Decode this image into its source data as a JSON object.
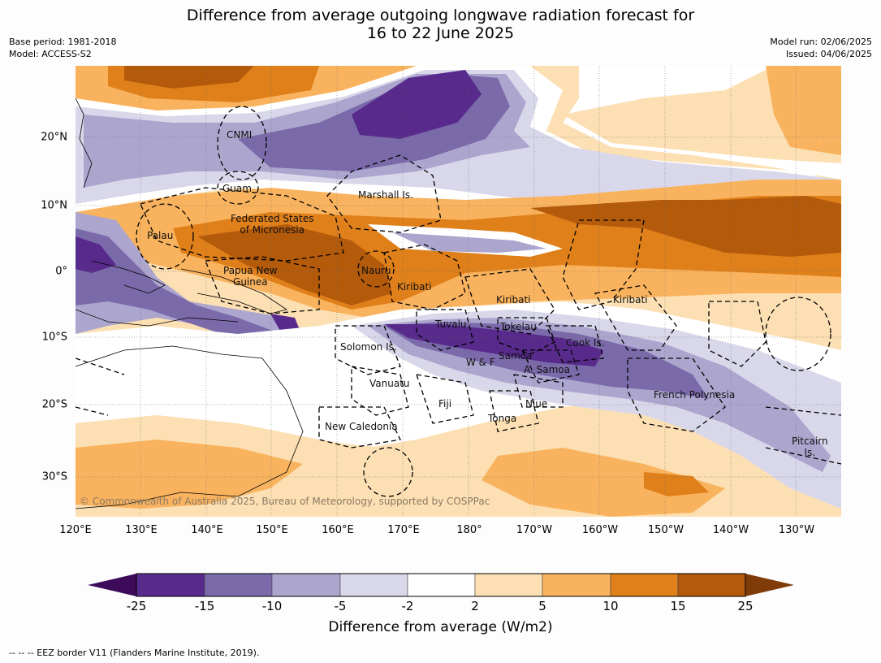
{
  "title_line1": "Difference from average outgoing longwave radiation forecast for",
  "title_line2": "16 to 22 June 2025",
  "base_period": "Base period: 1981-2018",
  "model": "Model: ACCESS-S2",
  "model_run": "Model run: 02/06/2025",
  "issued": "Issued: 04/06/2025",
  "lon_labels": [
    "120°E",
    "130°E",
    "140°E",
    "150°E",
    "160°E",
    "170°E",
    "180°",
    "170°W",
    "160°W",
    "150°W",
    "140°W",
    "130°W"
  ],
  "lat_labels": [
    "20°N",
    "10°N",
    "0°",
    "10°S",
    "20°S",
    "30°S"
  ],
  "places": {
    "cnmi": "CNMI",
    "guam": "Guam",
    "marshall": "Marshall Is.",
    "fsm1": "Federated States",
    "fsm2": "of Micronesia",
    "palau": "Palau",
    "png1": "Papua New",
    "png2": "Guinea",
    "nauru": "Nauru",
    "kiribati_w": "Kiribati",
    "kiribati_c": "Kiribati",
    "kiribati_e": "Kiribati",
    "tuvalu": "Tuvalu",
    "tokelau": "Tokelau",
    "cook": "Cook Is.",
    "solomon": "Solomon Is.",
    "samoa": "Samoa",
    "wf": "W & F",
    "asamoa": "A. Samoa",
    "vanuatu": "Vanuatu",
    "fiji": "Fiji",
    "niue": "Niue",
    "tonga": "Tonga",
    "frpoly": "French Polynesia",
    "pitcairn1": "Pitcairn",
    "pitcairn2": "Is.",
    "newcal": "New Caledonia"
  },
  "copyright": "© Commonwealth of Australia 2025, Bureau of Meteorology, supported by COSPPac",
  "colorbar": {
    "ticks": [
      "-25",
      "-15",
      "-10",
      "-5",
      "-2",
      "2",
      "5",
      "10",
      "15",
      "25"
    ],
    "colors": [
      "#3d0b5a",
      "#572a8c",
      "#7b6aaa",
      "#aca6cf",
      "#d9d8ea",
      "#ffffff",
      "#fcdfb2",
      "#f9b35e",
      "#e0801a",
      "#b45a0b",
      "#7f3b08"
    ],
    "label": "Difference from average (W/m2)"
  },
  "footnote": "--  --  -- EEZ border V11 (Flanders Marine Institute, 2019)."
}
